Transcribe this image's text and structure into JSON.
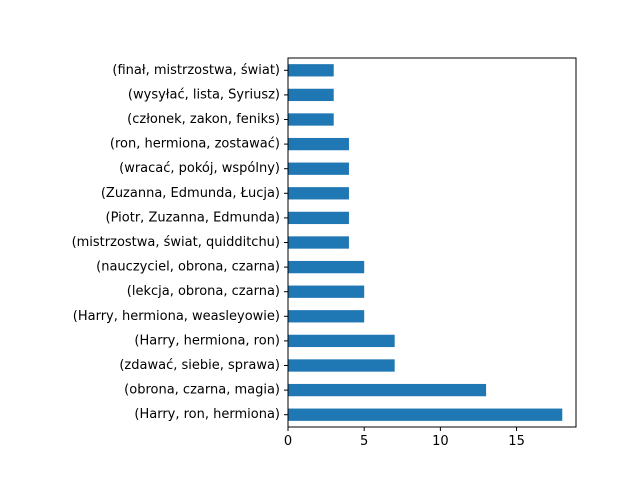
{
  "chart_data": {
    "type": "bar",
    "orientation": "horizontal",
    "categories": [
      "(finał, mistrzostwa, świat)",
      "(wysyłać, lista, Syriusz)",
      "(członek, zakon, feniks)",
      "(ron, hermiona, zostawać)",
      "(wracać, pokój, wspólny)",
      "(Zuzanna, Edmunda, Łucja)",
      "(Piotr, Zuzanna, Edmunda)",
      "(mistrzostwa, świat, quidditchu)",
      "(nauczyciel, obrona, czarna)",
      "(lekcja, obrona, czarna)",
      "(Harry, hermiona, weasleyowie)",
      "(Harry, hermiona, ron)",
      "(zdawać, siebie, sprawa)",
      "(obrona, czarna, magia)",
      "(Harry, ron, hermiona)"
    ],
    "values": [
      3,
      3,
      3,
      4,
      4,
      4,
      4,
      4,
      5,
      5,
      5,
      7,
      7,
      13,
      18
    ],
    "title": "",
    "xlabel": "",
    "ylabel": "",
    "xlim": [
      0,
      18.9
    ],
    "xticks": [
      "0",
      "5",
      "10",
      "15"
    ],
    "grid": false,
    "bar_color": "#1f77b4"
  }
}
